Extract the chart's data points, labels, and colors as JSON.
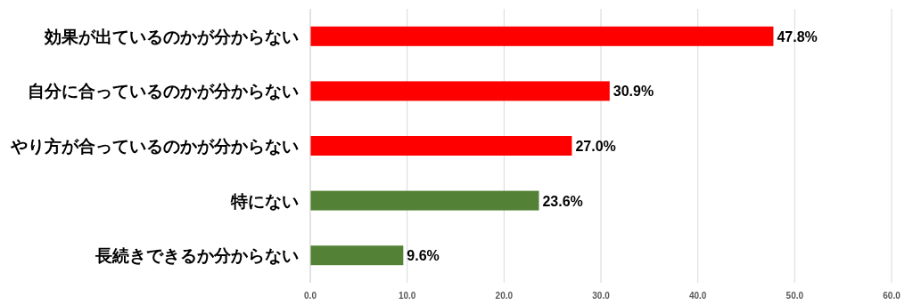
{
  "chart_data": {
    "type": "bar",
    "orientation": "horizontal",
    "categories": [
      "効果が出ているのかが分からない",
      "自分に合っているのかが分からない",
      "やり方が合っているのかが分からない",
      "特にない",
      "長続きできるか分からない"
    ],
    "values": [
      47.8,
      30.9,
      27.0,
      23.6,
      9.6
    ],
    "colors": [
      "#ff0000",
      "#ff0000",
      "#ff0000",
      "#538135",
      "#538135"
    ],
    "value_labels": [
      "47.8%",
      "30.9%",
      "27.0%",
      "23.6%",
      "9.6%"
    ],
    "xlim": [
      0,
      60
    ],
    "xticks": [
      {
        "value": 0,
        "label": "0.0"
      },
      {
        "value": 10,
        "label": "10.0"
      },
      {
        "value": 20,
        "label": "20.0"
      },
      {
        "value": 30,
        "label": "30.0"
      },
      {
        "value": 40,
        "label": "40.0"
      },
      {
        "value": 50,
        "label": "50.0"
      },
      {
        "value": 60,
        "label": "60.0"
      }
    ],
    "grid": "x"
  }
}
